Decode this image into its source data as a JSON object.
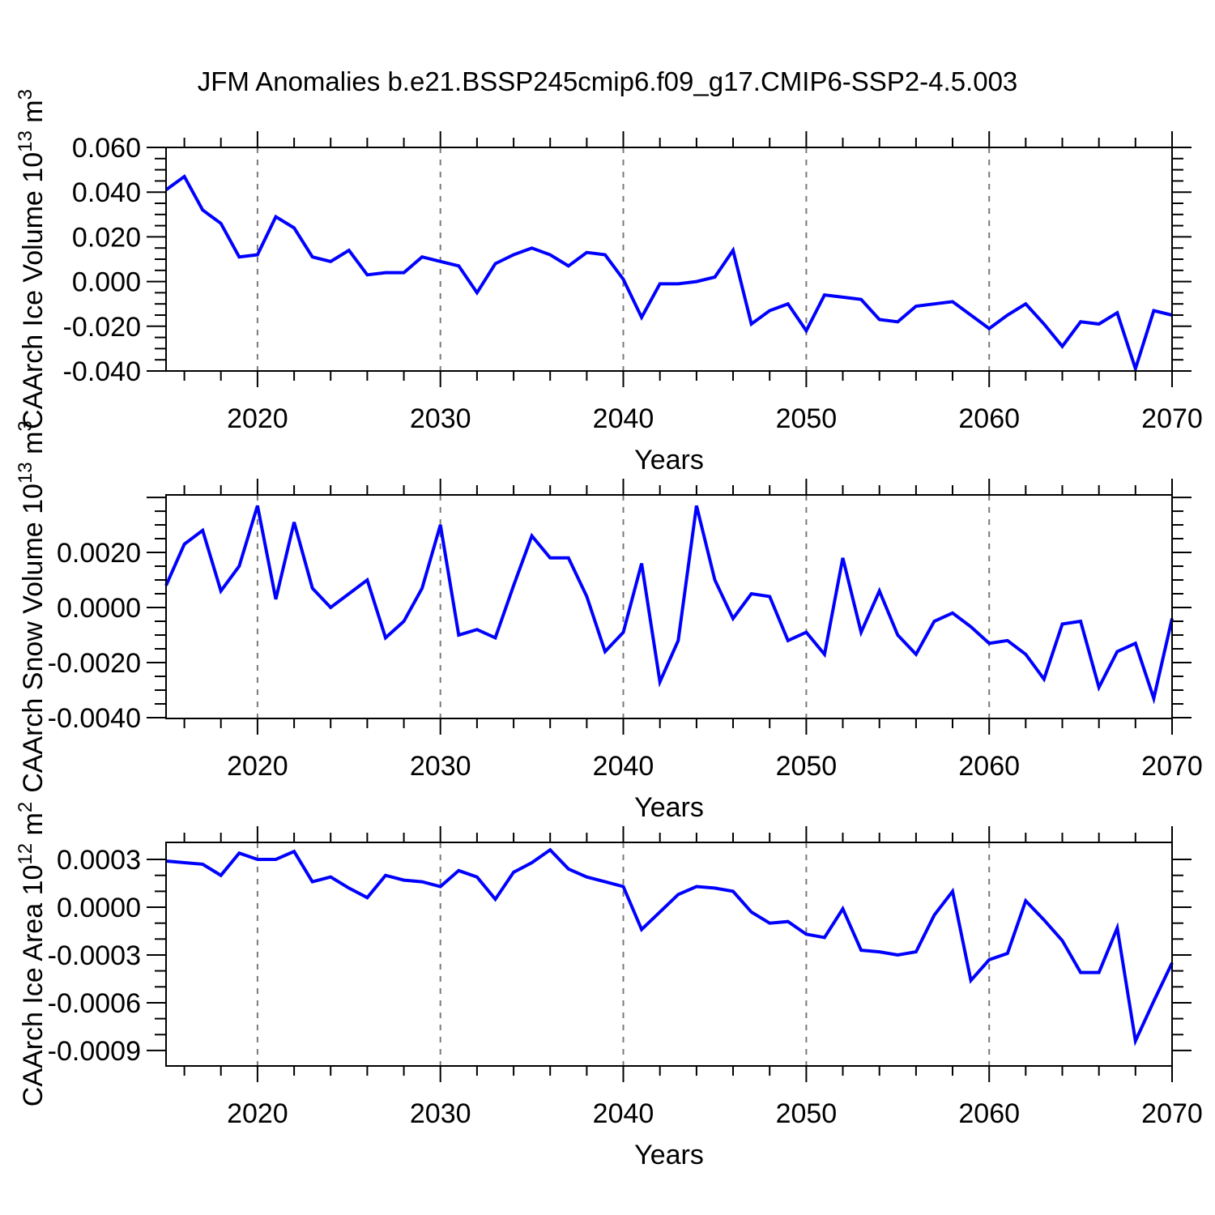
{
  "title": "JFM Anomalies b.e21.BSSP245cmip6.f09_g17.CMIP6-SSP2-4.5.003",
  "colors": {
    "line": "#0000ff",
    "grid": "#7a7a7a",
    "axis": "#000000",
    "text": "#000000",
    "background": "#ffffff"
  },
  "chart_data": {
    "type": "line",
    "title": "JFM Anomalies b.e21.BSSP245cmip6.f09_g17.CMIP6-SSP2-4.5.003",
    "x_label": "Years",
    "xlim": [
      2015,
      2070
    ],
    "x_major_ticks": [
      2020,
      2030,
      2040,
      2050,
      2060,
      2070
    ],
    "x_tick_labels": [
      "2020",
      "2030",
      "2040",
      "2050",
      "2060",
      "2070"
    ],
    "x_minor_step": 2,
    "x_gridlines": [
      2020,
      2030,
      2040,
      2050,
      2060
    ],
    "grid_style": "dashed-vertical",
    "legend": "none",
    "years": [
      2015,
      2016,
      2017,
      2018,
      2019,
      2020,
      2021,
      2022,
      2023,
      2024,
      2025,
      2026,
      2027,
      2028,
      2029,
      2030,
      2031,
      2032,
      2033,
      2034,
      2035,
      2036,
      2037,
      2038,
      2039,
      2040,
      2041,
      2042,
      2043,
      2044,
      2045,
      2046,
      2047,
      2048,
      2049,
      2050,
      2051,
      2052,
      2053,
      2054,
      2055,
      2056,
      2057,
      2058,
      2059,
      2060,
      2061,
      2062,
      2063,
      2064,
      2065,
      2066,
      2067,
      2068,
      2069,
      2070
    ],
    "panels": [
      {
        "name": "caarch-ice-volume",
        "ylabel_text": "CAArch Ice Volume 10^13 m^3",
        "ylabel_segments": [
          {
            "t": "CAArch Ice Volume 10"
          },
          {
            "s": "13"
          },
          {
            "t": " m"
          },
          {
            "s": "3"
          }
        ],
        "ylim": [
          -0.04,
          0.06
        ],
        "y_major_ticks": [
          0.06,
          0.04,
          0.02,
          0.0,
          -0.02,
          -0.04
        ],
        "y_tick_labels": [
          "0.060",
          "0.040",
          "0.020",
          "0.000",
          "-0.020",
          "-0.040"
        ],
        "y_minor_step": 0.005,
        "values": [
          0.041,
          0.047,
          0.032,
          0.026,
          0.011,
          0.012,
          0.029,
          0.024,
          0.011,
          0.009,
          0.014,
          0.003,
          0.004,
          0.004,
          0.011,
          0.009,
          0.007,
          -0.005,
          0.008,
          0.012,
          0.015,
          0.012,
          0.007,
          0.013,
          0.012,
          0.001,
          -0.016,
          -0.001,
          -0.001,
          0.0,
          0.002,
          0.014,
          -0.019,
          -0.013,
          -0.01,
          -0.022,
          -0.006,
          -0.007,
          -0.008,
          -0.017,
          -0.018,
          -0.011,
          -0.01,
          -0.009,
          -0.015,
          -0.021,
          -0.015,
          -0.01,
          -0.019,
          -0.029,
          -0.018,
          -0.019,
          -0.014,
          -0.039,
          -0.013,
          -0.015
        ]
      },
      {
        "name": "caarch-snow-volume",
        "ylabel_text": "CAArch Snow Volume 10^13 m^3",
        "ylabel_segments": [
          {
            "t": "CAArch Snow Volume 10"
          },
          {
            "s": "13"
          },
          {
            "t": " m"
          },
          {
            "s": "3"
          }
        ],
        "ylim": [
          -0.00403,
          0.00409
        ],
        "y_major_ticks": [
          0.004,
          0.002,
          0.0,
          -0.002,
          -0.004
        ],
        "y_tick_labels": [
          "",
          "0.0020",
          "0.0000",
          "-0.0020",
          "-0.0040"
        ],
        "y_minor_step": 0.0005,
        "values": [
          0.0008,
          0.0023,
          0.0028,
          0.0006,
          0.0015,
          0.0037,
          0.0003,
          0.0031,
          0.0007,
          0.0,
          0.0005,
          0.001,
          -0.0011,
          -0.0005,
          0.0007,
          0.003,
          -0.001,
          -0.0008,
          -0.0011,
          0.0008,
          0.0026,
          0.0018,
          0.0018,
          0.0004,
          -0.0016,
          -0.0009,
          0.0016,
          -0.0027,
          -0.0012,
          0.0037,
          0.001,
          -0.0004,
          0.0005,
          0.0004,
          -0.0012,
          -0.0009,
          -0.0017,
          0.0018,
          -0.0009,
          0.0006,
          -0.001,
          -0.0017,
          -0.0005,
          -0.0002,
          -0.0007,
          -0.0013,
          -0.0012,
          -0.0017,
          -0.0026,
          -0.0006,
          -0.0005,
          -0.0029,
          -0.0016,
          -0.0013,
          -0.0033,
          -0.0004
        ]
      },
      {
        "name": "caarch-ice-area",
        "ylabel_text": "CAArch Ice Area 10^12 m^2",
        "ylabel_segments": [
          {
            "t": "CAArch Ice Area 10"
          },
          {
            "s": "12"
          },
          {
            "t": " m"
          },
          {
            "s": "2"
          }
        ],
        "ylim": [
          -0.000997,
          0.000407
        ],
        "y_major_ticks": [
          0.0003,
          0.0,
          -0.0003,
          -0.0006,
          -0.0009
        ],
        "y_tick_labels": [
          "0.0003",
          "0.0000",
          "-0.0003",
          "-0.0006",
          "-0.0009"
        ],
        "y_minor_step": 0.0001,
        "values": [
          0.00029,
          0.00028,
          0.00027,
          0.0002,
          0.00034,
          0.0003,
          0.0003,
          0.00035,
          0.00016,
          0.00019,
          0.00012,
          6e-05,
          0.0002,
          0.00017,
          0.00016,
          0.00013,
          0.00023,
          0.00019,
          5e-05,
          0.00022,
          0.00028,
          0.00036,
          0.00024,
          0.00019,
          0.00016,
          0.00013,
          -0.00014,
          -3e-05,
          8e-05,
          0.00013,
          0.00012,
          0.0001,
          -3e-05,
          -0.0001,
          -9e-05,
          -0.00017,
          -0.00019,
          -1e-05,
          -0.00027,
          -0.00028,
          -0.0003,
          -0.00028,
          -5e-05,
          0.0001,
          -0.00046,
          -0.00033,
          -0.00029,
          4e-05,
          -8e-05,
          -0.00021,
          -0.00041,
          -0.00041,
          -0.00013,
          -0.00084,
          -0.00059,
          -0.00035
        ]
      }
    ]
  }
}
